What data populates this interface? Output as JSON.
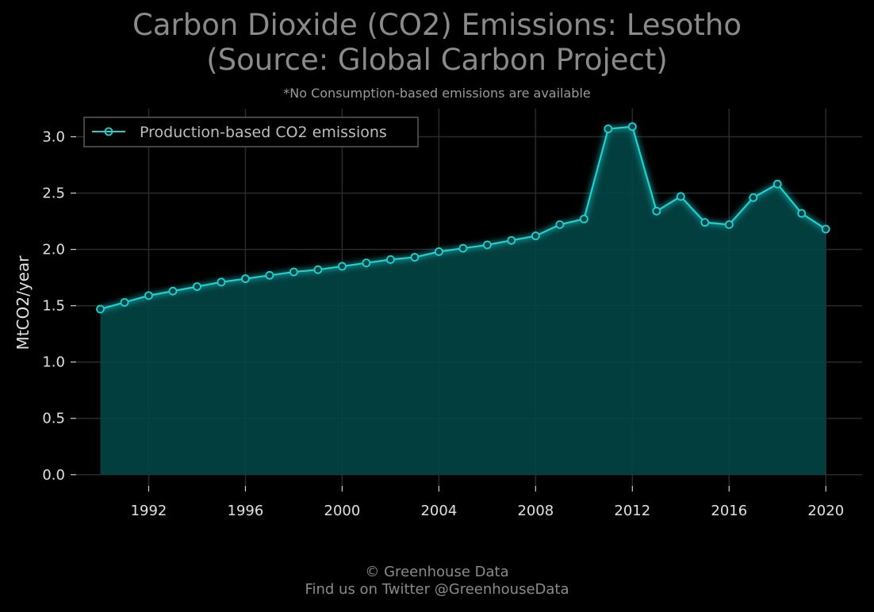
{
  "header": {
    "title_line1": "Carbon Dioxide (CO2) Emissions: Lesotho",
    "title_line2": "(Source: Global Carbon Project)",
    "subtitle": "*No Consumption-based emissions are available"
  },
  "footer": {
    "line1": "© Greenhouse Data",
    "line2": "Find us on Twitter @GreenhouseData"
  },
  "colors": {
    "background": "#000000",
    "line": "#1fd1d1",
    "fill": "#034545",
    "grid": "#2a2a2a",
    "text": "#e0e0e0",
    "title": "#8a8a8a"
  },
  "chart_data": {
    "type": "area",
    "title": "Carbon Dioxide (CO2) Emissions: Lesotho (Source: Global Carbon Project)",
    "xlabel": "",
    "ylabel": "MtCO2/year",
    "xlim": [
      1989,
      2021.5
    ],
    "ylim": [
      -0.1,
      3.25
    ],
    "xticks": [
      1992,
      1996,
      2000,
      2004,
      2008,
      2012,
      2016,
      2020
    ],
    "yticks": [
      0.0,
      0.5,
      1.0,
      1.5,
      2.0,
      2.5,
      3.0
    ],
    "ytick_labels": [
      "0.0",
      "0.5",
      "1.0",
      "1.5",
      "2.0",
      "2.5",
      "3.0"
    ],
    "grid": true,
    "legend_position": "top-left",
    "series": [
      {
        "name": "Production-based CO2 emissions",
        "marker": "circle",
        "x": [
          1990,
          1991,
          1992,
          1993,
          1994,
          1995,
          1996,
          1997,
          1998,
          1999,
          2000,
          2001,
          2002,
          2003,
          2004,
          2005,
          2006,
          2007,
          2008,
          2009,
          2010,
          2011,
          2012,
          2013,
          2014,
          2015,
          2016,
          2017,
          2018,
          2019,
          2020
        ],
        "y": [
          1.47,
          1.53,
          1.59,
          1.63,
          1.67,
          1.71,
          1.74,
          1.77,
          1.8,
          1.82,
          1.85,
          1.88,
          1.91,
          1.93,
          1.98,
          2.01,
          2.04,
          2.08,
          2.12,
          2.22,
          2.27,
          3.07,
          3.09,
          2.34,
          2.47,
          2.24,
          2.22,
          2.46,
          2.58,
          2.32,
          2.18
        ]
      }
    ]
  }
}
